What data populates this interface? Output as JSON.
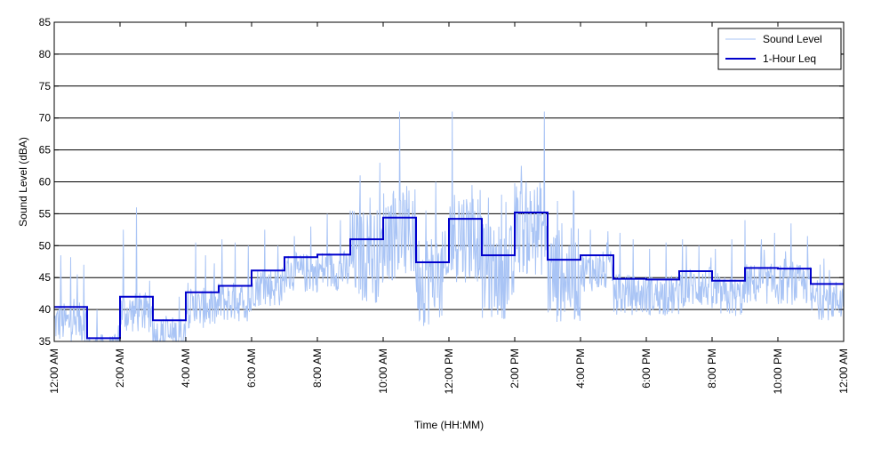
{
  "chart_data": {
    "type": "line",
    "title": "",
    "xlabel": "Time (HH:MM)",
    "ylabel": "Sound Level (dBA)",
    "xlim": [
      0,
      24
    ],
    "ylim": [
      35,
      85
    ],
    "yticks": [
      35,
      40,
      45,
      50,
      55,
      60,
      65,
      70,
      75,
      80,
      85
    ],
    "xtick_hours": [
      0,
      2,
      4,
      6,
      8,
      10,
      12,
      14,
      16,
      18,
      20,
      22,
      24
    ],
    "xtick_labels": [
      "12:00 AM",
      "2:00 AM",
      "4:00 AM",
      "6:00 AM",
      "8:00 AM",
      "10:00 AM",
      "12:00 PM",
      "2:00 PM",
      "4:00 PM",
      "6:00 PM",
      "8:00 PM",
      "10:00 PM",
      "12:00 AM"
    ],
    "grid": "horizontal",
    "legend_position": "top-right",
    "series": [
      {
        "name": "Sound Level",
        "color": "#a9c4f5",
        "style": "thin-line",
        "spikes": [
          [
            0.2,
            48.5
          ],
          [
            0.5,
            48.2
          ],
          [
            0.7,
            45.5
          ],
          [
            0.9,
            47.0
          ],
          [
            1.3,
            40.0
          ],
          [
            2.1,
            52.5
          ],
          [
            2.5,
            56.0
          ],
          [
            2.9,
            44.5
          ],
          [
            3.4,
            39.0
          ],
          [
            3.8,
            42.0
          ],
          [
            4.3,
            50.5
          ],
          [
            4.6,
            48.5
          ],
          [
            5.1,
            51.0
          ],
          [
            5.5,
            50.5
          ],
          [
            5.9,
            50.0
          ],
          [
            6.4,
            52.5
          ],
          [
            6.8,
            50.0
          ],
          [
            7.3,
            51.5
          ],
          [
            7.8,
            53.0
          ],
          [
            8.3,
            55.0
          ],
          [
            8.7,
            54.0
          ],
          [
            9.0,
            55.5
          ],
          [
            9.3,
            61.0
          ],
          [
            9.6,
            57.5
          ],
          [
            9.9,
            63.0
          ],
          [
            10.3,
            58.0
          ],
          [
            10.5,
            71.0
          ],
          [
            10.9,
            57.0
          ],
          [
            11.3,
            55.5
          ],
          [
            11.6,
            60.0
          ],
          [
            12.1,
            71.0
          ],
          [
            12.3,
            57.0
          ],
          [
            12.7,
            59.5
          ],
          [
            13.2,
            57.5
          ],
          [
            13.6,
            58.0
          ],
          [
            14.2,
            62.5
          ],
          [
            14.5,
            57.0
          ],
          [
            14.9,
            71.0
          ],
          [
            15.3,
            57.0
          ],
          [
            15.8,
            58.5
          ],
          [
            16.3,
            52.5
          ],
          [
            16.8,
            50.5
          ],
          [
            17.2,
            52.0
          ],
          [
            17.6,
            51.0
          ],
          [
            18.1,
            49.5
          ],
          [
            18.6,
            50.5
          ],
          [
            19.1,
            51.0
          ],
          [
            19.6,
            50.0
          ],
          [
            20.1,
            49.5
          ],
          [
            20.6,
            51.0
          ],
          [
            21.0,
            54.0
          ],
          [
            21.5,
            51.0
          ],
          [
            21.9,
            52.0
          ],
          [
            22.4,
            53.5
          ],
          [
            22.9,
            51.5
          ],
          [
            23.4,
            48.0
          ],
          [
            23.9,
            43.0
          ]
        ]
      },
      {
        "name": "1-Hour Leq",
        "color": "#0000cc",
        "style": "step",
        "hourly_values": [
          40.4,
          35.5,
          42.0,
          38.3,
          42.7,
          43.7,
          46.1,
          48.2,
          48.6,
          51.0,
          54.4,
          47.4,
          54.2,
          48.5,
          55.2,
          47.8,
          48.5,
          44.8,
          44.7,
          46.0,
          44.5,
          46.5,
          46.4,
          44.0
        ]
      }
    ]
  }
}
